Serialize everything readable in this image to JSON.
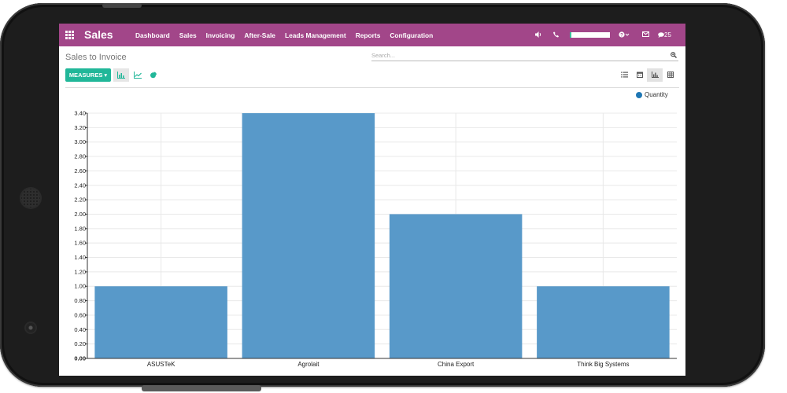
{
  "topbar": {
    "brand": "Sales",
    "menu": [
      "Dashboard",
      "Sales",
      "Invoicing",
      "After-Sale",
      "Leads Management",
      "Reports",
      "Configuration"
    ],
    "chat_count": "25",
    "color": "#a24689"
  },
  "control_panel": {
    "title": "Sales to Invoice",
    "search_placeholder": "Search...",
    "measures_label": "MEASURES",
    "accent": "#21b799"
  },
  "legend": {
    "label": "Quantity",
    "color": "#1f77b4"
  },
  "chart_data": {
    "type": "bar",
    "categories": [
      "ASUSTeK",
      "Agrolait",
      "China Export",
      "Think Big Systems"
    ],
    "series": [
      {
        "name": "Quantity",
        "values": [
          1,
          3.4,
          2,
          1
        ]
      }
    ],
    "ylim": [
      0,
      3.4
    ],
    "yticks": [
      "0.00",
      "0.20",
      "0.40",
      "0.60",
      "0.80",
      "1.00",
      "1.20",
      "1.40",
      "1.60",
      "1.80",
      "2.00",
      "2.20",
      "2.40",
      "2.60",
      "2.80",
      "3.00",
      "3.20",
      "3.40"
    ],
    "grid": true,
    "legend_position": "top-right",
    "bar_color": "#5899c9"
  }
}
